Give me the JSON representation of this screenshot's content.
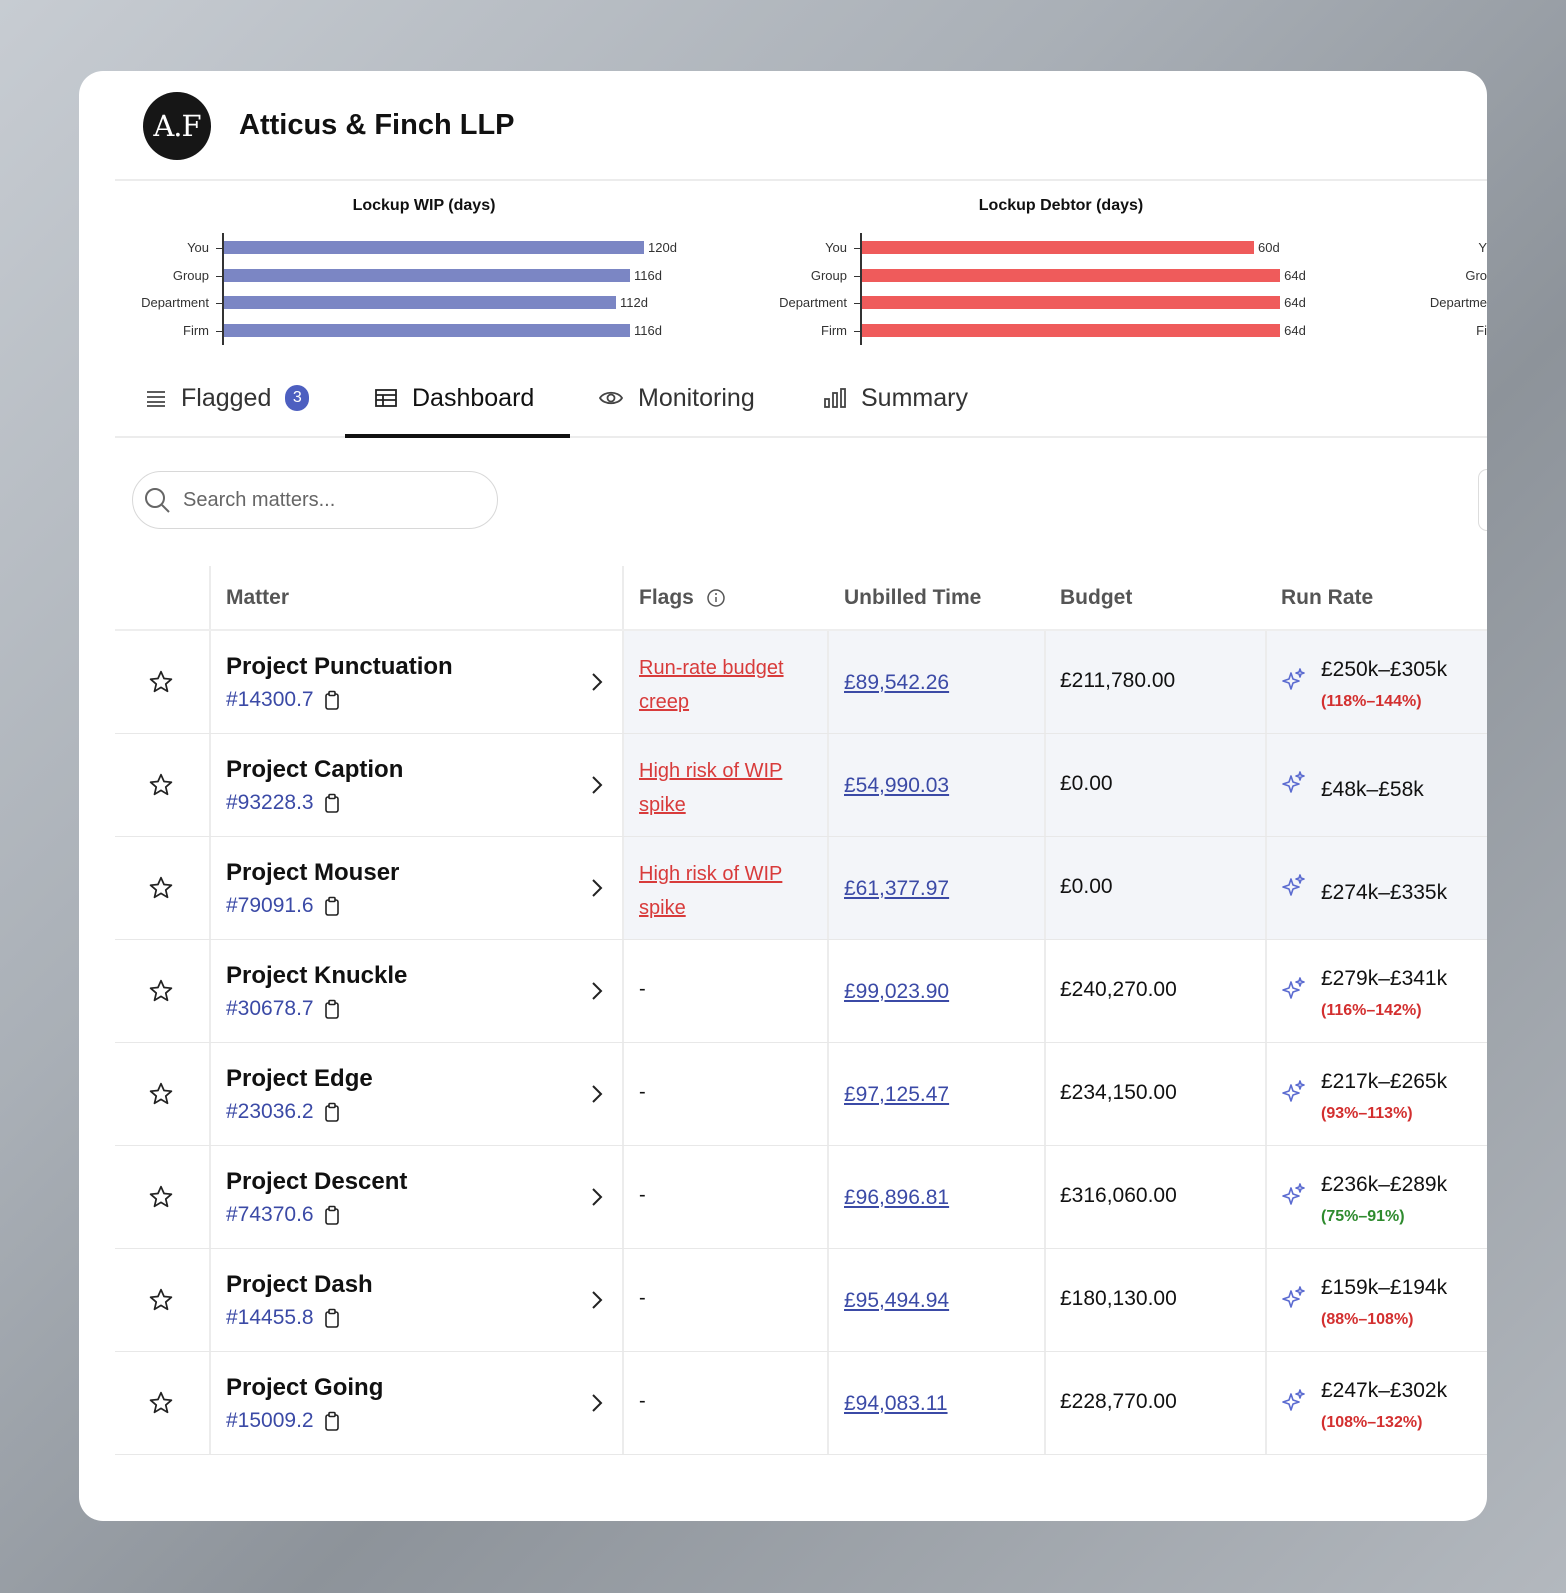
{
  "firm": {
    "logo_text": "A.F",
    "name": "Atticus & Finch LLP"
  },
  "chart_data": [
    {
      "type": "bar",
      "orientation": "horizontal",
      "title": "Lockup WIP (days)",
      "categories": [
        "You",
        "Group",
        "Department",
        "Firm"
      ],
      "values": [
        120,
        116,
        112,
        116
      ],
      "labels": [
        "120d",
        "116d",
        "112d",
        "116d"
      ],
      "color": "#7b86c4"
    },
    {
      "type": "bar",
      "orientation": "horizontal",
      "title": "Lockup Debtor (days)",
      "categories": [
        "You",
        "Group",
        "Department",
        "Firm"
      ],
      "values": [
        60,
        64,
        64,
        64
      ],
      "labels": [
        "60d",
        "64d",
        "64d",
        "64d"
      ],
      "color": "#ef5b5b"
    }
  ],
  "third_chart_partial": {
    "categories": [
      "Y",
      "Gro",
      "Departme",
      "Fi"
    ]
  },
  "tabs": [
    {
      "label": "Flagged",
      "icon": "list-icon",
      "badge": "3"
    },
    {
      "label": "Dashboard",
      "icon": "table-icon",
      "active": true
    },
    {
      "label": "Monitoring",
      "icon": "eye-icon"
    },
    {
      "label": "Summary",
      "icon": "bar-chart-icon"
    }
  ],
  "search": {
    "placeholder": "Search matters..."
  },
  "table": {
    "headers": {
      "matter": "Matter",
      "flags": "Flags",
      "unbilled": "Unbilled Time",
      "budget": "Budget",
      "run_rate": "Run Rate"
    },
    "rows": [
      {
        "name": "Project Punctuation",
        "id": "#14300.7",
        "flag": "Run-rate budget creep",
        "unbilled": "£89,542.26",
        "budget": "£211,780.00",
        "range": "£250k–£305k",
        "pct": "(118%–144%)",
        "pct_color": "#d32f2f"
      },
      {
        "name": "Project Caption",
        "id": "#93228.3",
        "flag": "High risk of WIP spike",
        "unbilled": "£54,990.03",
        "budget": "£0.00",
        "range": "£48k–£58k",
        "pct": "",
        "pct_color": "#d32f2f"
      },
      {
        "name": "Project Mouser",
        "id": "#79091.6",
        "flag": "High risk of WIP spike",
        "unbilled": "£61,377.97",
        "budget": "£0.00",
        "range": "£274k–£335k",
        "pct": "",
        "pct_color": "#d32f2f"
      },
      {
        "name": "Project Knuckle",
        "id": "#30678.7",
        "flag": "-",
        "unbilled": "£99,023.90",
        "budget": "£240,270.00",
        "range": "£279k–£341k",
        "pct": "(116%–142%)",
        "pct_color": "#d32f2f"
      },
      {
        "name": "Project Edge",
        "id": "#23036.2",
        "flag": "-",
        "unbilled": "£97,125.47",
        "budget": "£234,150.00",
        "range": "£217k–£265k",
        "pct": "(93%–113%)",
        "pct_color": "#d32f2f"
      },
      {
        "name": "Project Descent",
        "id": "#74370.6",
        "flag": "-",
        "unbilled": "£96,896.81",
        "budget": "£316,060.00",
        "range": "£236k–£289k",
        "pct": "(75%–91%)",
        "pct_color": "#2e8b2e"
      },
      {
        "name": "Project Dash",
        "id": "#14455.8",
        "flag": "-",
        "unbilled": "£95,494.94",
        "budget": "£180,130.00",
        "range": "£159k–£194k",
        "pct": "(88%–108%)",
        "pct_color": "#d32f2f"
      },
      {
        "name": "Project Going",
        "id": "#15009.2",
        "flag": "-",
        "unbilled": "£94,083.11",
        "budget": "£228,770.00",
        "range": "£247k–£302k",
        "pct": "(108%–132%)",
        "pct_color": "#d32f2f"
      }
    ]
  }
}
